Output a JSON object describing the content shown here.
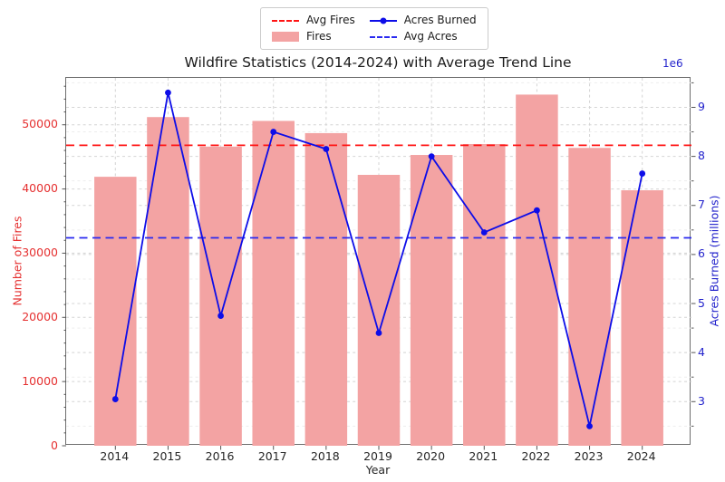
{
  "title": "Wildfire Statistics (2014-2024) with Average Trend Line",
  "legend": {
    "items": [
      {
        "label": "Avg Fires",
        "swatch": "dashed-line",
        "color": "#ff1414"
      },
      {
        "label": "Fires",
        "swatch": "patch",
        "color": "#f3a3a3"
      },
      {
        "label": "Acres Burned",
        "swatch": "marker-line",
        "color": "#0d0de8"
      },
      {
        "label": "Avg Acres",
        "swatch": "dashed-line",
        "color": "#2a2af0"
      }
    ]
  },
  "chart_data": {
    "type": "combo-bar-line",
    "title": "Wildfire Statistics (2014-2024) with Average Trend Line",
    "xlabel": "Year",
    "categories": [
      "2014",
      "2015",
      "2016",
      "2017",
      "2018",
      "2019",
      "2020",
      "2021",
      "2022",
      "2023",
      "2024"
    ],
    "series": [
      {
        "name": "Fires",
        "type": "bar",
        "axis": "left",
        "color": "#f3a3a3",
        "values": [
          41900,
          51200,
          46600,
          50600,
          48700,
          42200,
          45300,
          47000,
          54700,
          46400,
          39800
        ]
      },
      {
        "name": "Acres Burned",
        "type": "line",
        "axis": "right",
        "color": "#0d0de8",
        "values_millions": [
          3.05,
          9.3,
          4.75,
          8.5,
          8.15,
          4.4,
          8.0,
          6.45,
          6.9,
          2.5,
          7.65
        ]
      },
      {
        "name": "Avg Fires",
        "type": "hline",
        "axis": "left",
        "style": "dashed",
        "color": "#ff1414",
        "value": 46800
      },
      {
        "name": "Avg Acres",
        "type": "hline",
        "axis": "right",
        "style": "dashed",
        "color": "#2a2af0",
        "value_millions": 6.34
      }
    ],
    "left_axis": {
      "label": "Number of Fires",
      "text_color": "#e53030",
      "ticks": [
        0,
        10000,
        20000,
        30000,
        40000,
        50000
      ],
      "minor_step": 2000,
      "range": [
        0,
        57300
      ]
    },
    "right_axis": {
      "label": "Acres Burned (millions)",
      "text_color": "#2323cc",
      "ticks": [
        3,
        4,
        5,
        6,
        7,
        8,
        9
      ],
      "minor_ticks": [
        2.5,
        3.5,
        4.5,
        5.5,
        6.5,
        7.5,
        8.5,
        9.5
      ],
      "range": [
        2.1,
        9.6
      ],
      "offset_text": "1e6"
    },
    "grid": true,
    "legend_position": "top-center"
  }
}
